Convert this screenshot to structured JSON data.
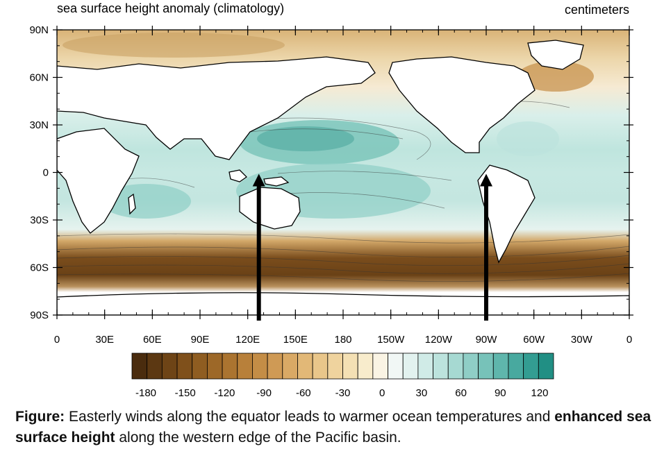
{
  "map": {
    "title": "sea surface height anomaly (climatology)",
    "units": "centimeters",
    "lat_labels": [
      "90N",
      "60N",
      "30N",
      "0",
      "30S",
      "60S",
      "90S"
    ],
    "lon_labels": [
      "0",
      "30E",
      "60E",
      "90E",
      "120E",
      "150E",
      "180",
      "150W",
      "120W",
      "90W",
      "60W",
      "30W",
      "0"
    ],
    "lon_range": [
      0,
      360
    ],
    "lat_range": [
      -90,
      90
    ],
    "arrows_at_lon": [
      127,
      270
    ]
  },
  "colorbar": {
    "tick_labels": [
      "-180",
      "-150",
      "-120",
      "-90",
      "-60",
      "-30",
      "0",
      "30",
      "60",
      "90",
      "120"
    ],
    "colors": [
      "#4a2c0e",
      "#5c3812",
      "#6e4416",
      "#7f501b",
      "#8f5d21",
      "#9d6828",
      "#ab7430",
      "#b8803a",
      "#c48d46",
      "#cf9a55",
      "#d9a965",
      "#e2b877",
      "#e9c68a",
      "#efd39e",
      "#f4e0b4",
      "#f8eccc",
      "#faf4e4",
      "#f1f7f5",
      "#e2f2ef",
      "#d0ebe7",
      "#bce3dd",
      "#a6d9d2",
      "#8fcec6",
      "#77c2b9",
      "#5fb6ac",
      "#48a99f",
      "#339d92",
      "#218f84"
    ]
  },
  "caption": {
    "lead": "Figure:",
    "part1": " Easterly winds along the equator leads to warmer ocean temperatures and ",
    "bold": "enhanced sea surface height",
    "part2": " along the western edge of the Pacific basin."
  }
}
